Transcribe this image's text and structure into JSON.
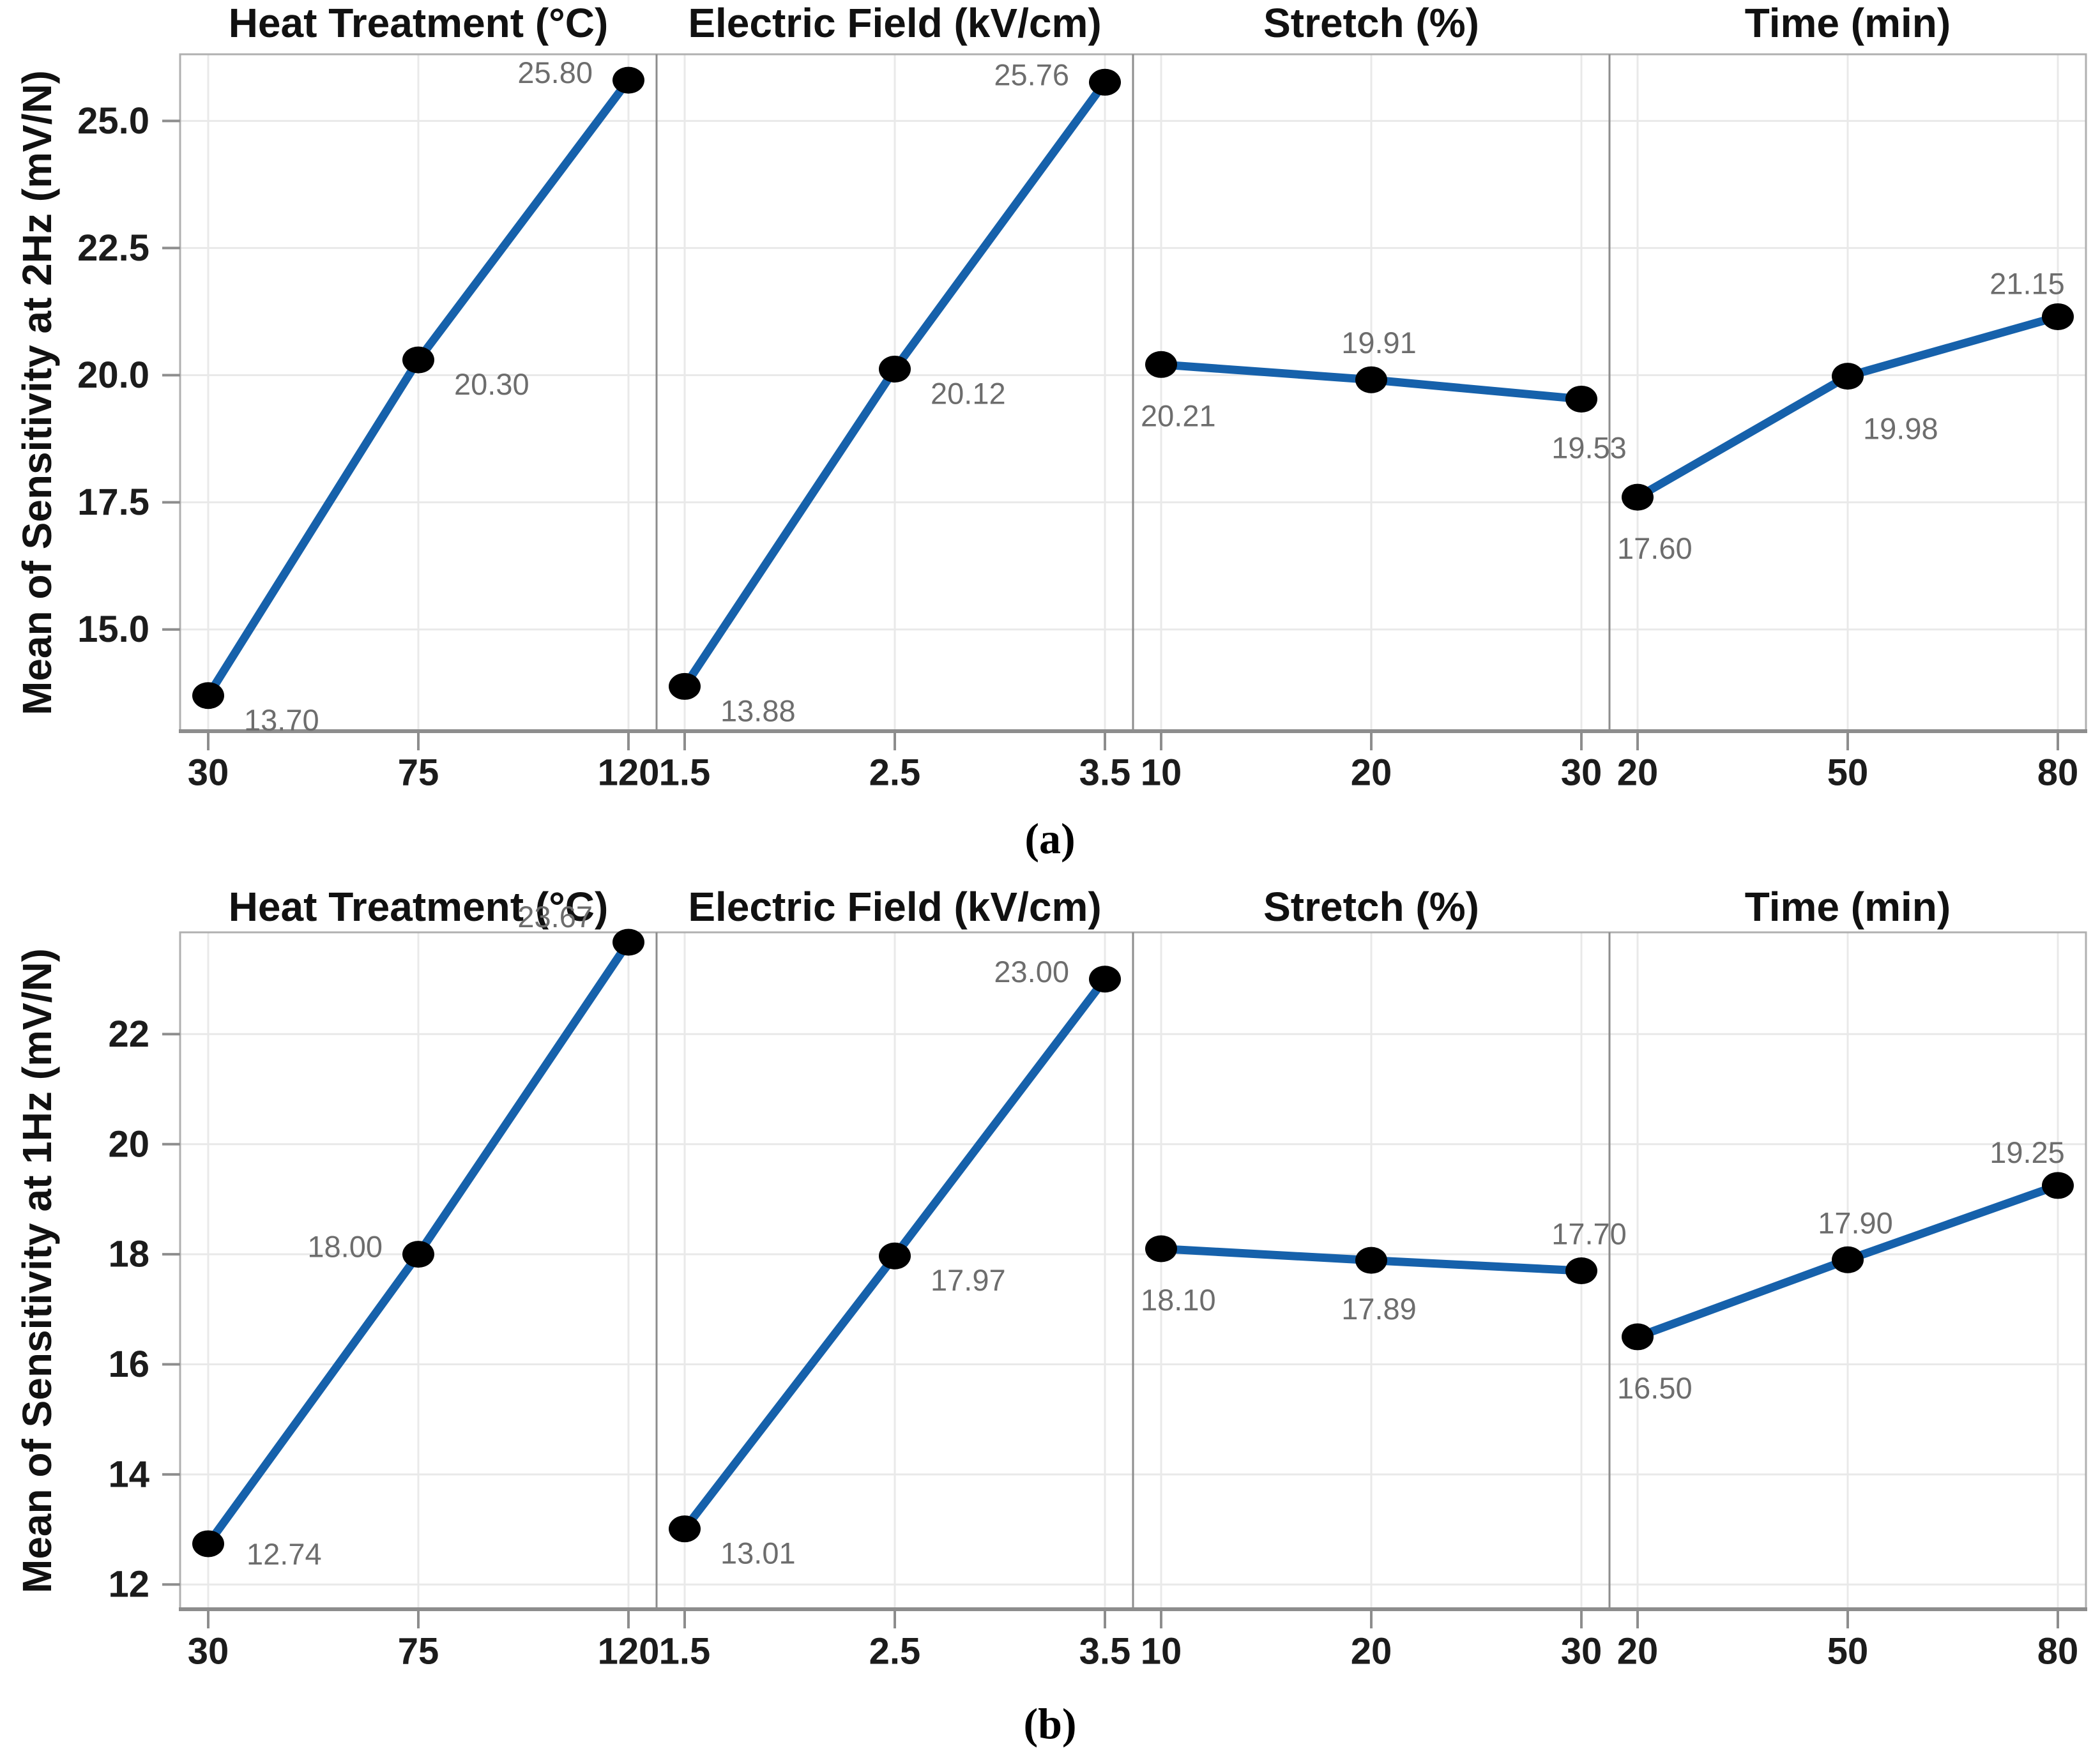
{
  "figure": {
    "background": "#ffffff",
    "accent_line_color": "#1661ab",
    "marker_color": "#000000",
    "gridline_color": "#e9e9e9",
    "axis_color": "#8d8d8d",
    "data_label_color": "#6d6d6d"
  },
  "chart_data": [
    {
      "type": "line",
      "subtype": "main-effects-plot",
      "caption": "(a)",
      "ylabel": "Mean of Sensitivity at 2Hz (mV/N)",
      "ylim": [
        13.0,
        26.31
      ],
      "grid": true,
      "legend": "none",
      "yticks": [
        15.0,
        17.5,
        20.0,
        22.5,
        25.0
      ],
      "ytick_labels": [
        "15.0",
        "17.5",
        "20.0",
        "22.5",
        "25.0"
      ],
      "line_color": "#1661ab",
      "marker_color": "#000000",
      "panels": [
        {
          "title": "Heat Treatment (°C)",
          "x": [
            30,
            75,
            120
          ],
          "x_labels": [
            "30",
            "75",
            "120"
          ],
          "values": [
            13.7,
            20.3,
            25.8
          ],
          "point_labels": [
            "13.70",
            "20.30",
            "25.80"
          ],
          "label_pos": [
            "rb",
            "rb",
            "l"
          ]
        },
        {
          "title": "Electric Field (kV/cm)",
          "x": [
            1.5,
            2.5,
            3.5
          ],
          "x_labels": [
            "1.5",
            "2.5",
            "3.5"
          ],
          "values": [
            13.88,
            20.12,
            25.76
          ],
          "point_labels": [
            "13.88",
            "20.12",
            "25.76"
          ],
          "label_pos": [
            "rb",
            "rb",
            "l"
          ]
        },
        {
          "title": "Stretch (%)",
          "x": [
            10,
            20,
            30
          ],
          "x_labels": [
            "10",
            "20",
            "30"
          ],
          "values": [
            20.21,
            19.91,
            19.53
          ],
          "point_labels": [
            "20.21",
            "19.91",
            "19.53"
          ],
          "label_pos": [
            "bs",
            "t",
            "b"
          ]
        },
        {
          "title": "Time (min)",
          "x": [
            20,
            50,
            80
          ],
          "x_labels": [
            "20",
            "50",
            "80"
          ],
          "values": [
            17.6,
            19.98,
            21.15
          ],
          "point_labels": [
            "17.60",
            "19.98",
            "21.15"
          ],
          "label_pos": [
            "bs",
            "br",
            "tl"
          ]
        }
      ]
    },
    {
      "type": "line",
      "subtype": "main-effects-plot",
      "caption": "(b)",
      "ylabel": "Mean of Sensitivity at 1Hz (mV/N)",
      "ylim": [
        11.55,
        23.85
      ],
      "grid": true,
      "legend": "none",
      "yticks": [
        12,
        14,
        16,
        18,
        20,
        22
      ],
      "ytick_labels": [
        "12",
        "14",
        "16",
        "18",
        "20",
        "22"
      ],
      "line_color": "#1661ab",
      "marker_color": "#000000",
      "panels": [
        {
          "title": "Heat Treatment (°C)",
          "x": [
            30,
            75,
            120
          ],
          "x_labels": [
            "30",
            "75",
            "120"
          ],
          "values": [
            12.74,
            18.0,
            23.67
          ],
          "point_labels": [
            "12.74",
            "18.00",
            "23.67"
          ],
          "label_pos": [
            "r",
            "l",
            "lt"
          ]
        },
        {
          "title": "Electric Field (kV/cm)",
          "x": [
            1.5,
            2.5,
            3.5
          ],
          "x_labels": [
            "1.5",
            "2.5",
            "3.5"
          ],
          "values": [
            13.01,
            17.97,
            23.0
          ],
          "point_labels": [
            "13.01",
            "17.97",
            "23.00"
          ],
          "label_pos": [
            "rb",
            "rb",
            "l"
          ]
        },
        {
          "title": "Stretch (%)",
          "x": [
            10,
            20,
            30
          ],
          "x_labels": [
            "10",
            "20",
            "30"
          ],
          "values": [
            18.1,
            17.89,
            17.7
          ],
          "point_labels": [
            "18.10",
            "17.89",
            "17.70"
          ],
          "label_pos": [
            "bs",
            "b",
            "t"
          ]
        },
        {
          "title": "Time (min)",
          "x": [
            20,
            50,
            80
          ],
          "x_labels": [
            "20",
            "50",
            "80"
          ],
          "values": [
            16.5,
            17.9,
            19.25
          ],
          "point_labels": [
            "16.50",
            "17.90",
            "19.25"
          ],
          "label_pos": [
            "bs",
            "t",
            "tl"
          ]
        }
      ]
    }
  ]
}
